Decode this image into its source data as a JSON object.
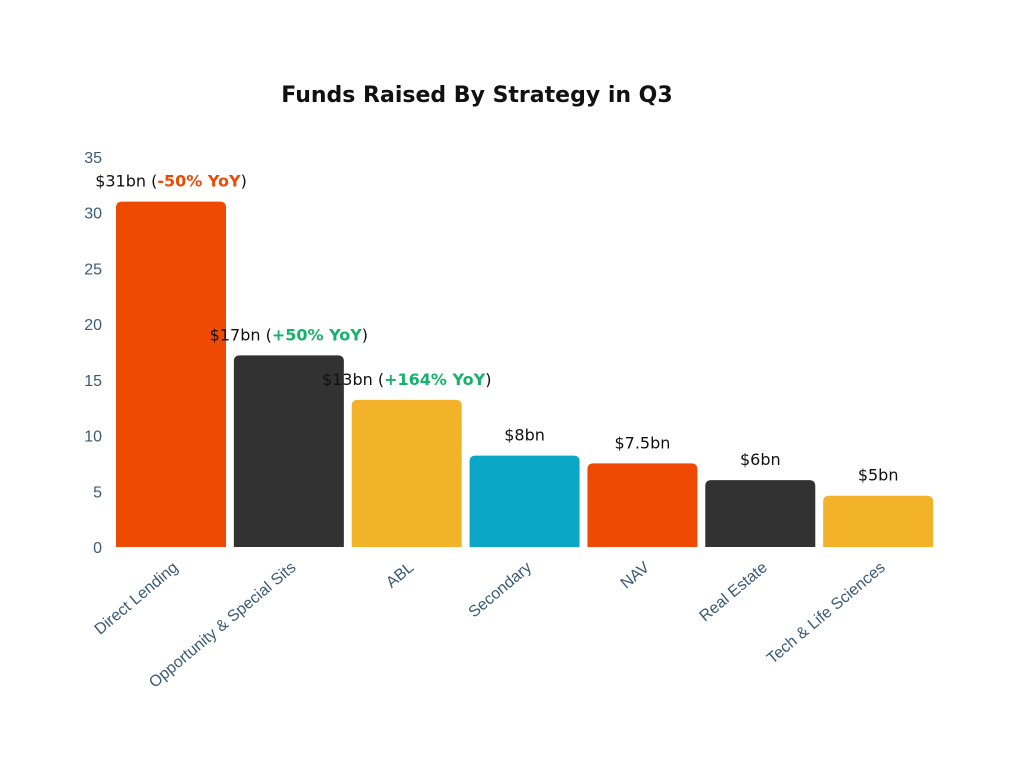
{
  "chart_data": {
    "type": "bar",
    "title": "Funds Raised By Strategy in Q3",
    "xlabel": "",
    "ylabel": "",
    "ylim": [
      0,
      35
    ],
    "yticks": [
      0,
      5,
      10,
      15,
      20,
      25,
      30,
      35
    ],
    "grid": false,
    "categories": [
      "Direct Lending",
      "Opportunity & Special Sits",
      "ABL",
      "Secondary",
      "NAV",
      "Real Estate",
      "Tech & Life Sciences"
    ],
    "values": [
      31,
      17.2,
      13.2,
      8.2,
      7.5,
      6,
      4.6
    ],
    "colors": [
      "#EF4A04",
      "#323232",
      "#F2B22A",
      "#0AA6C6",
      "#EF4A04",
      "#323232",
      "#F2B22A"
    ],
    "data_labels": [
      {
        "value": "$31bn",
        "yoy": "-50% YoY",
        "yoy_color": "#EF4A04"
      },
      {
        "value": "$17bn",
        "yoy": "+50% YoY",
        "yoy_color": "#17B26A"
      },
      {
        "value": "$13bn",
        "yoy": "+164% YoY",
        "yoy_color": "#17B26A"
      },
      {
        "value": "$8bn",
        "yoy": "",
        "yoy_color": ""
      },
      {
        "value": "$7.5bn",
        "yoy": "",
        "yoy_color": ""
      },
      {
        "value": "$6bn",
        "yoy": "",
        "yoy_color": ""
      },
      {
        "value": "$5bn",
        "yoy": "",
        "yoy_color": ""
      }
    ]
  }
}
